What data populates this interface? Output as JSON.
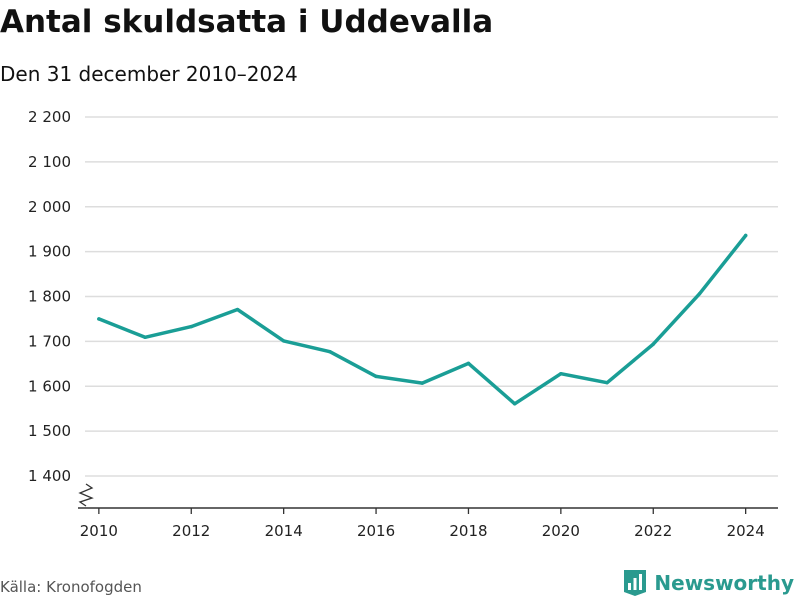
{
  "header": {
    "title": "Antal skuldsatta i Uddevalla",
    "subtitle": "Den 31 december 2010–2024"
  },
  "footer": {
    "source": "Källa: Kronofogden",
    "brand": "Newsworthy"
  },
  "colors": {
    "line": "#1a9e96",
    "brand": "#2a9a8f",
    "grid": "#dddddd",
    "axis": "#333333"
  },
  "chart_data": {
    "type": "line",
    "title": "Antal skuldsatta i Uddevalla",
    "subtitle": "Den 31 december 2010–2024",
    "xlabel": "",
    "ylabel": "",
    "x": [
      2010,
      2011,
      2012,
      2013,
      2014,
      2015,
      2016,
      2017,
      2018,
      2019,
      2020,
      2021,
      2022,
      2023,
      2024
    ],
    "series": [
      {
        "name": "Antal skuldsatta",
        "values": [
          1750,
          1709,
          1733,
          1771,
          1701,
          1677,
          1622,
          1607,
          1651,
          1561,
          1628,
          1608,
          1694,
          1806,
          1936
        ]
      }
    ],
    "xlim": [
      2009.7,
      2024.7
    ],
    "ylim": [
      1400,
      2200
    ],
    "y_axis_break": true,
    "xticks": [
      2010,
      2012,
      2014,
      2016,
      2018,
      2020,
      2022,
      2024
    ],
    "xtick_labels": [
      "2010",
      "2012",
      "2014",
      "2016",
      "2018",
      "2020",
      "2022",
      "2024"
    ],
    "yticks": [
      1400,
      1500,
      1600,
      1700,
      1800,
      1900,
      2000,
      2100,
      2200
    ],
    "ytick_labels": [
      "1 400",
      "1 500",
      "1 600",
      "1 700",
      "1 800",
      "1 900",
      "2 000",
      "2 100",
      "2 200"
    ],
    "grid": true,
    "legend": "none"
  }
}
